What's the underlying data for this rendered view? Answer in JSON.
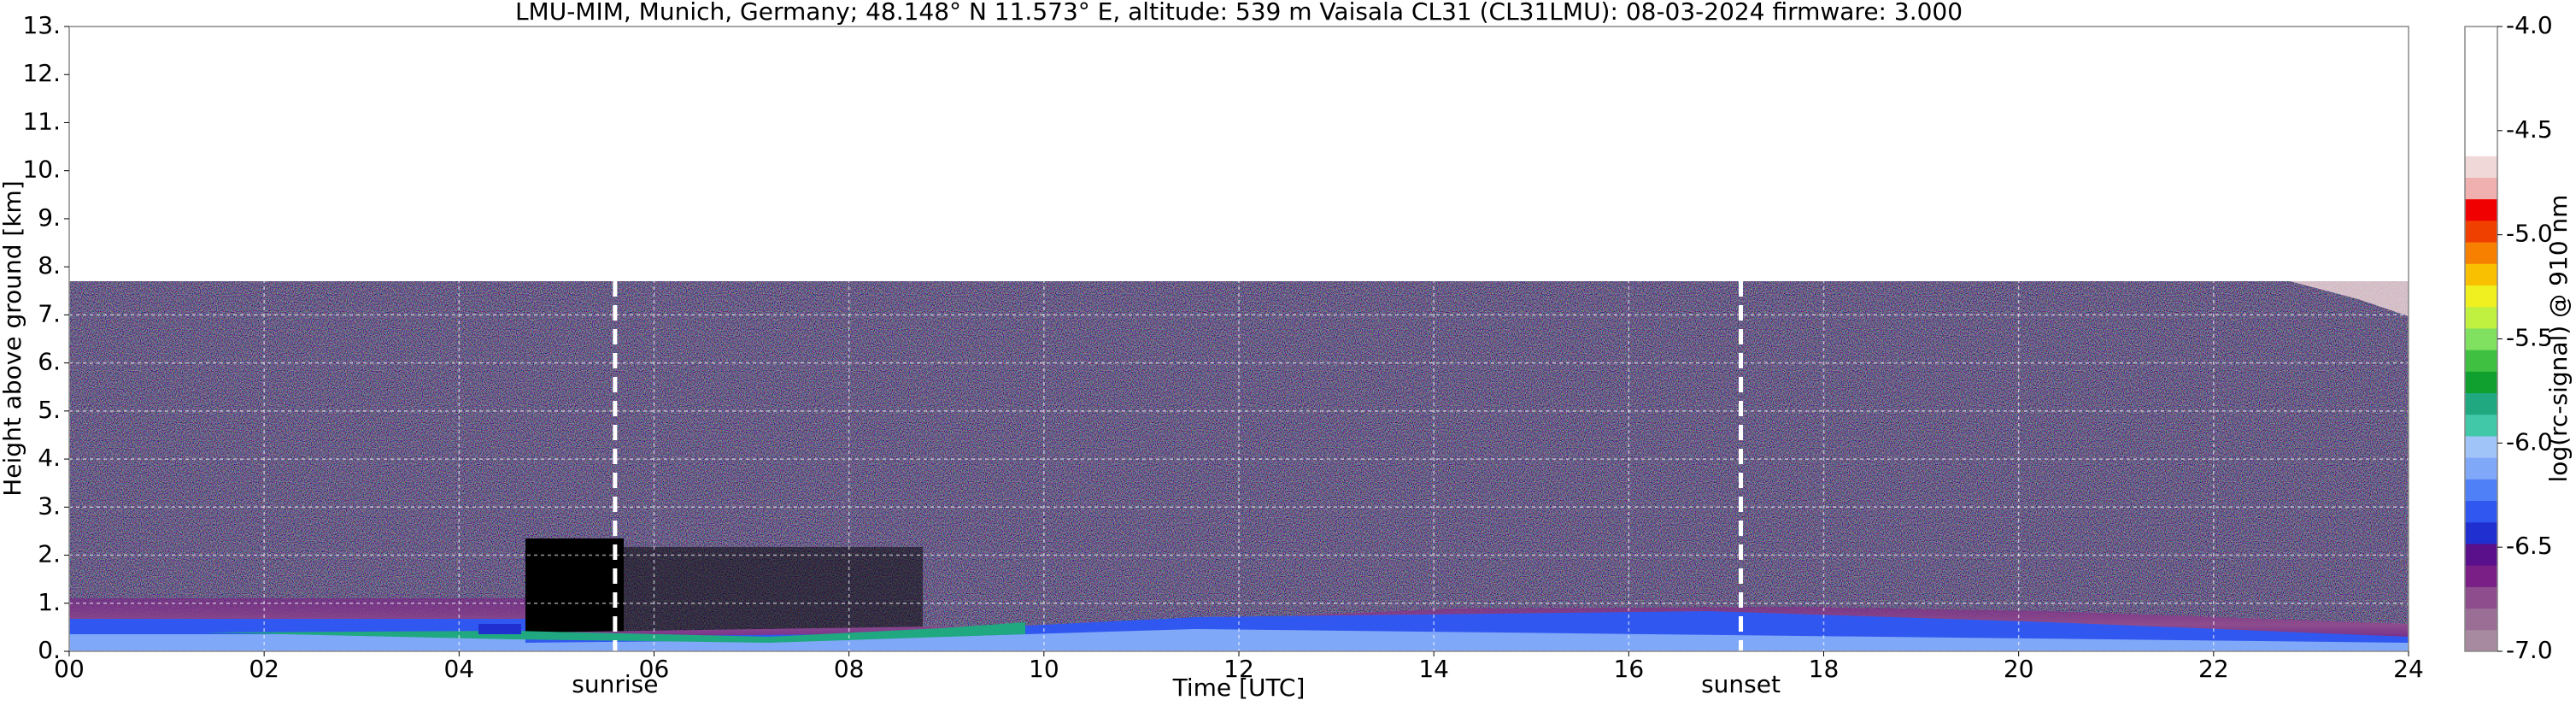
{
  "chart_data": {
    "type": "heatmap",
    "title": "LMU-MIM, Munich, Germany; 48.148° N 11.573° E, altitude: 539 m    Vaisala CL31 (CL31LMU): 08-03-2024    firmware: 3.000",
    "x_label": "Time [UTC]",
    "y_label": "Height above ground [km]",
    "colorbar_label": "log(rc-signal) @ 910 nm",
    "xlim": [
      0,
      24
    ],
    "xticks": [
      {
        "value": 0,
        "label": "00"
      },
      {
        "value": 2,
        "label": "02"
      },
      {
        "value": 4,
        "label": "04"
      },
      {
        "value": 6,
        "label": "06"
      },
      {
        "value": 8,
        "label": "08"
      },
      {
        "value": 10,
        "label": "10"
      },
      {
        "value": 12,
        "label": "12"
      },
      {
        "value": 14,
        "label": "14"
      },
      {
        "value": 16,
        "label": "16"
      },
      {
        "value": 18,
        "label": "18"
      },
      {
        "value": 20,
        "label": "20"
      },
      {
        "value": 22,
        "label": "22"
      },
      {
        "value": 24,
        "label": "24"
      }
    ],
    "ylim": [
      0,
      13
    ],
    "yticks": [
      {
        "value": 0,
        "label": "0."
      },
      {
        "value": 1,
        "label": "1."
      },
      {
        "value": 2,
        "label": "2."
      },
      {
        "value": 3,
        "label": "3."
      },
      {
        "value": 4,
        "label": "4."
      },
      {
        "value": 5,
        "label": "5."
      },
      {
        "value": 6,
        "label": "6."
      },
      {
        "value": 7,
        "label": "7."
      },
      {
        "value": 8,
        "label": "8."
      },
      {
        "value": 9,
        "label": "9."
      },
      {
        "value": 10,
        "label": "10."
      },
      {
        "value": 11,
        "label": "11."
      },
      {
        "value": 12,
        "label": "12."
      },
      {
        "value": 13,
        "label": "13."
      }
    ],
    "clim": [
      -7,
      -4
    ],
    "cticks": [
      {
        "value": -7,
        "label": "-7.0"
      },
      {
        "value": -6.5,
        "label": "-6.5"
      },
      {
        "value": -6,
        "label": "-6.0"
      },
      {
        "value": -5.5,
        "label": "-5.5"
      },
      {
        "value": -5,
        "label": "-5.0"
      },
      {
        "value": -4.5,
        "label": "-4.5"
      },
      {
        "value": -4,
        "label": "-4.0"
      }
    ],
    "colormap": [
      "#a88aa0",
      "#9a6e95",
      "#8e4d8d",
      "#7a1f85",
      "#5a108a",
      "#2030d0",
      "#3058f0",
      "#5080f8",
      "#80a8f8",
      "#a0c4f8",
      "#40c8a8",
      "#20a880",
      "#10a030",
      "#40c040",
      "#80e060",
      "#c0f040",
      "#f0f020",
      "#f8c000",
      "#f88000",
      "#f04000",
      "#f00000",
      "#f0b0b0",
      "#f0d8d8",
      "#ffffff",
      "#ffffff",
      "#ffffff",
      "#ffffff",
      "#ffffff",
      "#ffffff"
    ],
    "grid": true,
    "annotations": [
      {
        "text": "sunrise",
        "x": 5.6
      },
      {
        "text": "sunset",
        "x": 17.15
      }
    ]
  }
}
